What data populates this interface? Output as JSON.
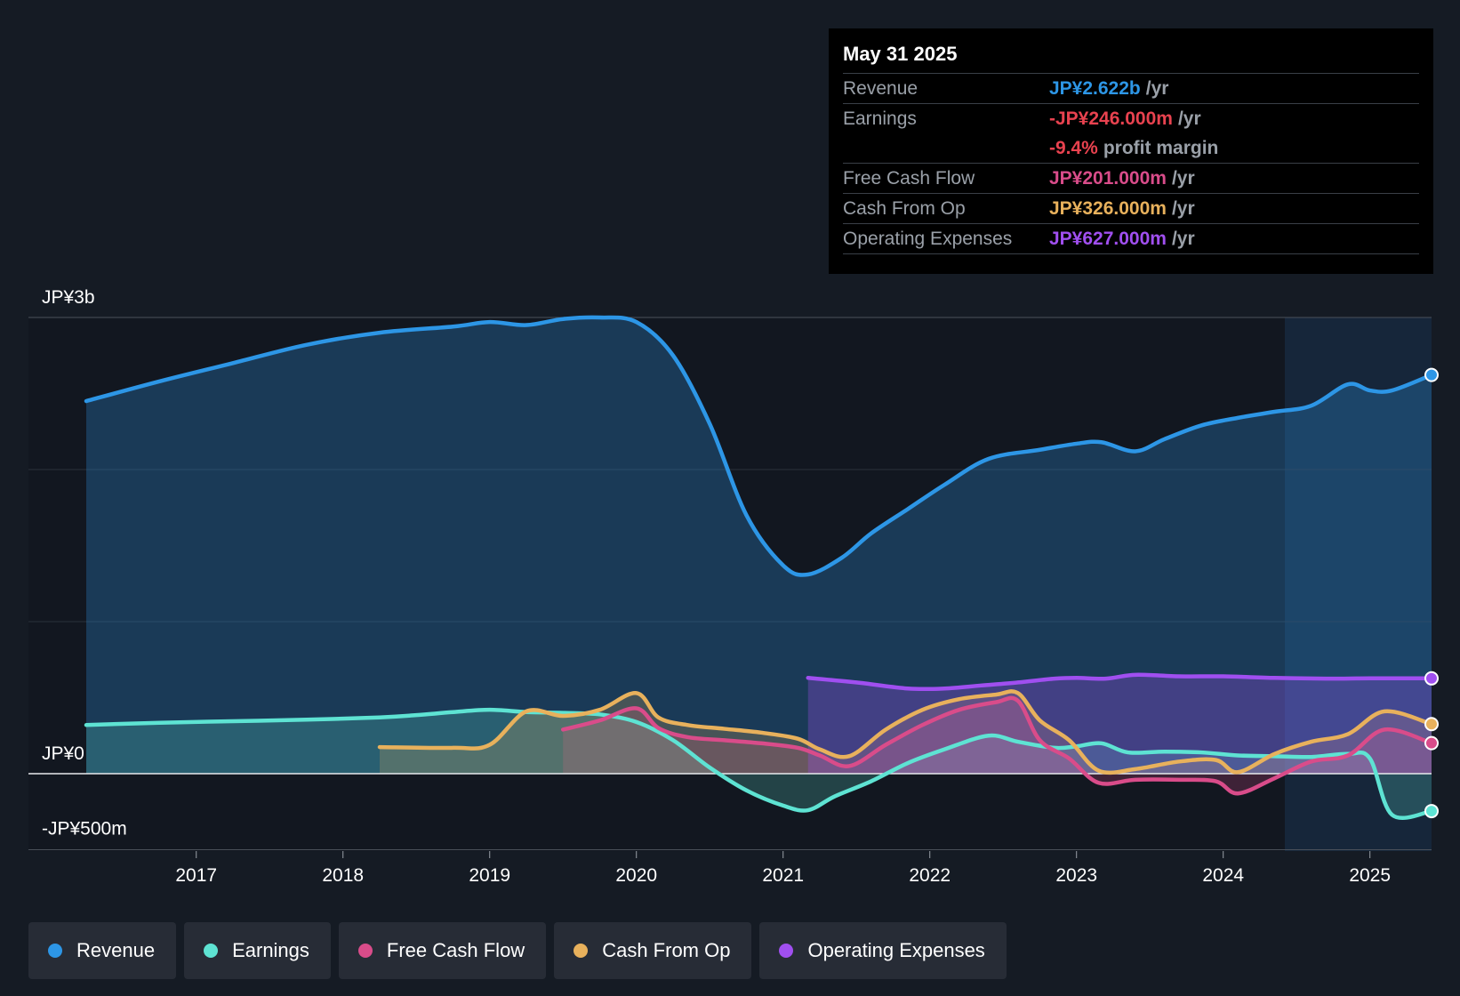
{
  "tooltip": {
    "date": "May 31 2025",
    "rows": [
      {
        "label": "Revenue",
        "value": "JP¥2.622b",
        "unit": "/yr",
        "color": "#2d96e6"
      },
      {
        "label": "Earnings",
        "value": "-JP¥246.000m",
        "unit": "/yr",
        "color": "#e8424f"
      },
      {
        "label": "",
        "value": "-9.4%",
        "unit": "profit margin",
        "color": "#e8424f"
      },
      {
        "label": "Free Cash Flow",
        "value": "JP¥201.000m",
        "unit": "/yr",
        "color": "#d94c8a"
      },
      {
        "label": "Cash From Op",
        "value": "JP¥326.000m",
        "unit": "/yr",
        "color": "#e8b15c"
      },
      {
        "label": "Operating Expenses",
        "value": "JP¥627.000m",
        "unit": "/yr",
        "color": "#a04ff0"
      }
    ]
  },
  "legend": [
    {
      "label": "Revenue",
      "color": "#2d96e6"
    },
    {
      "label": "Earnings",
      "color": "#5ee3d3"
    },
    {
      "label": "Free Cash Flow",
      "color": "#d94c8a"
    },
    {
      "label": "Cash From Op",
      "color": "#e8b15c"
    },
    {
      "label": "Operating Expenses",
      "color": "#a04ff0"
    }
  ],
  "chart_data": {
    "type": "line",
    "y_axis_labels": [
      "JP¥3b",
      "JP¥0",
      "-JP¥500m"
    ],
    "ylim": [
      -500,
      3000
    ],
    "y_unit": "JP¥m",
    "x_ticks": [
      "2017",
      "2018",
      "2019",
      "2020",
      "2021",
      "2022",
      "2023",
      "2024",
      "2025"
    ],
    "xlim": [
      2016.25,
      2025.42
    ],
    "forecast_shade_start": 2024.42,
    "series": [
      {
        "name": "Revenue",
        "color": "#2d96e6",
        "fill": true,
        "points": [
          [
            2016.25,
            2450
          ],
          [
            2016.75,
            2580
          ],
          [
            2017.25,
            2700
          ],
          [
            2017.75,
            2820
          ],
          [
            2018.25,
            2900
          ],
          [
            2018.75,
            2940
          ],
          [
            2019.0,
            2970
          ],
          [
            2019.25,
            2950
          ],
          [
            2019.5,
            2990
          ],
          [
            2019.75,
            3000
          ],
          [
            2020.0,
            2970
          ],
          [
            2020.25,
            2750
          ],
          [
            2020.5,
            2300
          ],
          [
            2020.75,
            1700
          ],
          [
            2021.0,
            1370
          ],
          [
            2021.17,
            1310
          ],
          [
            2021.4,
            1420
          ],
          [
            2021.6,
            1580
          ],
          [
            2021.85,
            1740
          ],
          [
            2022.1,
            1900
          ],
          [
            2022.4,
            2070
          ],
          [
            2022.75,
            2130
          ],
          [
            2023.0,
            2170
          ],
          [
            2023.17,
            2180
          ],
          [
            2023.4,
            2120
          ],
          [
            2023.6,
            2200
          ],
          [
            2023.85,
            2290
          ],
          [
            2024.1,
            2340
          ],
          [
            2024.35,
            2380
          ],
          [
            2024.6,
            2420
          ],
          [
            2024.85,
            2560
          ],
          [
            2025.0,
            2520
          ],
          [
            2025.15,
            2520
          ],
          [
            2025.42,
            2622
          ]
        ]
      },
      {
        "name": "Earnings",
        "color": "#5ee3d3",
        "fill": true,
        "points": [
          [
            2016.25,
            320
          ],
          [
            2016.75,
            335
          ],
          [
            2017.25,
            345
          ],
          [
            2017.75,
            355
          ],
          [
            2018.25,
            370
          ],
          [
            2018.5,
            385
          ],
          [
            2018.75,
            405
          ],
          [
            2019.0,
            420
          ],
          [
            2019.25,
            405
          ],
          [
            2019.5,
            400
          ],
          [
            2019.75,
            390
          ],
          [
            2020.0,
            340
          ],
          [
            2020.25,
            220
          ],
          [
            2020.5,
            40
          ],
          [
            2020.75,
            -110
          ],
          [
            2021.0,
            -210
          ],
          [
            2021.17,
            -240
          ],
          [
            2021.35,
            -150
          ],
          [
            2021.6,
            -50
          ],
          [
            2021.85,
            70
          ],
          [
            2022.1,
            160
          ],
          [
            2022.4,
            250
          ],
          [
            2022.6,
            210
          ],
          [
            2022.85,
            170
          ],
          [
            2023.0,
            180
          ],
          [
            2023.17,
            200
          ],
          [
            2023.35,
            140
          ],
          [
            2023.6,
            145
          ],
          [
            2023.85,
            140
          ],
          [
            2024.1,
            120
          ],
          [
            2024.35,
            115
          ],
          [
            2024.6,
            110
          ],
          [
            2024.85,
            130
          ],
          [
            2025.0,
            100
          ],
          [
            2025.15,
            -270
          ],
          [
            2025.42,
            -246
          ]
        ]
      },
      {
        "name": "Free Cash Flow",
        "color": "#d94c8a",
        "fill": true,
        "points": [
          [
            2019.5,
            290
          ],
          [
            2019.75,
            350
          ],
          [
            2020.0,
            430
          ],
          [
            2020.15,
            300
          ],
          [
            2020.35,
            240
          ],
          [
            2020.6,
            220
          ],
          [
            2020.85,
            200
          ],
          [
            2021.1,
            170
          ],
          [
            2021.25,
            120
          ],
          [
            2021.45,
            50
          ],
          [
            2021.7,
            190
          ],
          [
            2021.95,
            320
          ],
          [
            2022.2,
            420
          ],
          [
            2022.45,
            470
          ],
          [
            2022.6,
            480
          ],
          [
            2022.75,
            220
          ],
          [
            2022.95,
            100
          ],
          [
            2023.15,
            -60
          ],
          [
            2023.4,
            -40
          ],
          [
            2023.7,
            -40
          ],
          [
            2023.95,
            -50
          ],
          [
            2024.1,
            -130
          ],
          [
            2024.35,
            -30
          ],
          [
            2024.6,
            80
          ],
          [
            2024.85,
            120
          ],
          [
            2025.1,
            290
          ],
          [
            2025.42,
            201
          ]
        ]
      },
      {
        "name": "Cash From Op",
        "color": "#e8b15c",
        "fill": true,
        "points": [
          [
            2018.25,
            175
          ],
          [
            2018.75,
            170
          ],
          [
            2019.0,
            190
          ],
          [
            2019.25,
            410
          ],
          [
            2019.5,
            380
          ],
          [
            2019.75,
            420
          ],
          [
            2020.0,
            530
          ],
          [
            2020.15,
            370
          ],
          [
            2020.35,
            320
          ],
          [
            2020.6,
            295
          ],
          [
            2020.85,
            270
          ],
          [
            2021.1,
            230
          ],
          [
            2021.25,
            160
          ],
          [
            2021.45,
            115
          ],
          [
            2021.7,
            290
          ],
          [
            2021.95,
            420
          ],
          [
            2022.2,
            490
          ],
          [
            2022.45,
            520
          ],
          [
            2022.6,
            530
          ],
          [
            2022.75,
            350
          ],
          [
            2022.95,
            220
          ],
          [
            2023.15,
            20
          ],
          [
            2023.4,
            30
          ],
          [
            2023.7,
            80
          ],
          [
            2023.95,
            90
          ],
          [
            2024.1,
            10
          ],
          [
            2024.35,
            130
          ],
          [
            2024.6,
            210
          ],
          [
            2024.85,
            260
          ],
          [
            2025.1,
            410
          ],
          [
            2025.42,
            326
          ]
        ]
      },
      {
        "name": "Operating Expenses",
        "color": "#a04ff0",
        "fill": true,
        "points": [
          [
            2021.17,
            630
          ],
          [
            2021.5,
            600
          ],
          [
            2021.85,
            560
          ],
          [
            2022.1,
            560
          ],
          [
            2022.35,
            580
          ],
          [
            2022.6,
            600
          ],
          [
            2022.85,
            625
          ],
          [
            2023.0,
            630
          ],
          [
            2023.2,
            625
          ],
          [
            2023.4,
            650
          ],
          [
            2023.7,
            640
          ],
          [
            2024.0,
            640
          ],
          [
            2024.35,
            630
          ],
          [
            2024.7,
            625
          ],
          [
            2025.0,
            627
          ],
          [
            2025.42,
            627
          ]
        ]
      }
    ]
  }
}
